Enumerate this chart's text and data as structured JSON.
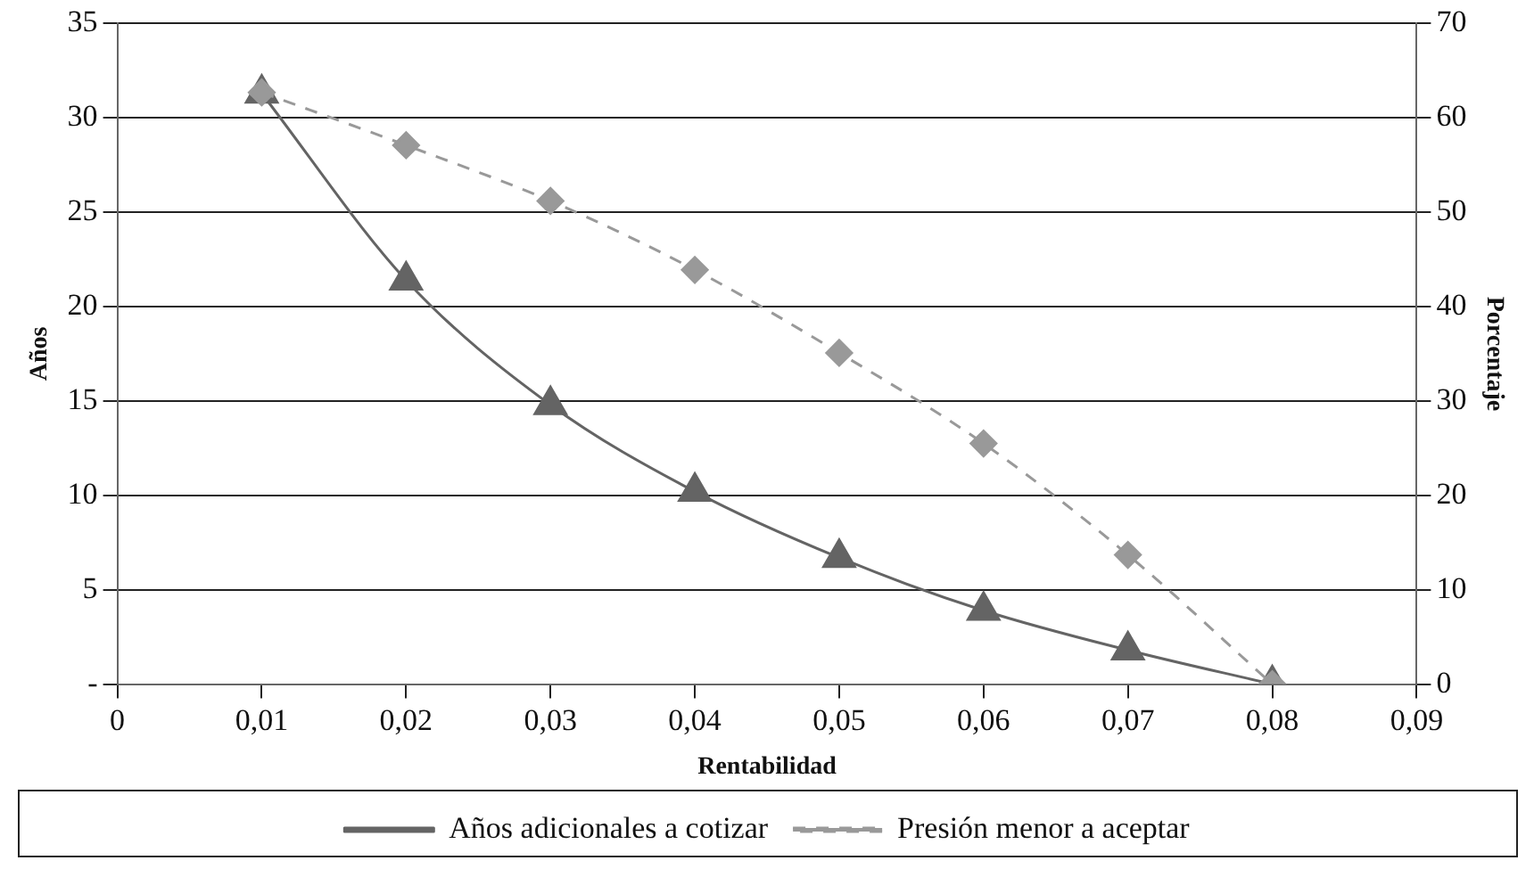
{
  "chart_data": {
    "type": "line",
    "xlabel": "Rentabilidad",
    "ylabel": "Años",
    "y2label": "Porcentaje",
    "x": [
      0.01,
      0.02,
      0.03,
      0.04,
      0.05,
      0.06,
      0.07,
      0.08
    ],
    "series": [
      {
        "name": "Años adicionales a cotizar",
        "color": "#646464",
        "marker": "triangle",
        "line_style": "solid",
        "values": [
          31.3,
          21.4,
          14.8,
          10.2,
          6.7,
          3.9,
          1.8,
          0
        ]
      },
      {
        "name": "Presión menor a aceptar",
        "color": "#999999",
        "marker": "diamond",
        "line_style": "dashed",
        "axis": "y2",
        "values": [
          62.7,
          57.1,
          51.2,
          43.9,
          35.1,
          25.5,
          13.7,
          0
        ]
      }
    ],
    "xlim": [
      0,
      0.09
    ],
    "xticks": [
      {
        "value": 0,
        "label": "0"
      },
      {
        "value": 0.01,
        "label": "0,01"
      },
      {
        "value": 0.02,
        "label": "0,02"
      },
      {
        "value": 0.03,
        "label": "0,03"
      },
      {
        "value": 0.04,
        "label": "0,04"
      },
      {
        "value": 0.05,
        "label": "0,05"
      },
      {
        "value": 0.06,
        "label": "0,06"
      },
      {
        "value": 0.07,
        "label": "0,07"
      },
      {
        "value": 0.08,
        "label": "0,08"
      },
      {
        "value": 0.09,
        "label": "0,09"
      }
    ],
    "ylim": [
      0,
      35
    ],
    "yticks": [
      {
        "value": 0,
        "label": "-"
      },
      5,
      10,
      15,
      20,
      25,
      30,
      35
    ],
    "y2lim": [
      0,
      70
    ],
    "y2ticks": [
      0,
      10,
      20,
      30,
      40,
      50,
      60,
      70
    ],
    "grid": "y",
    "legend": "bottom"
  }
}
